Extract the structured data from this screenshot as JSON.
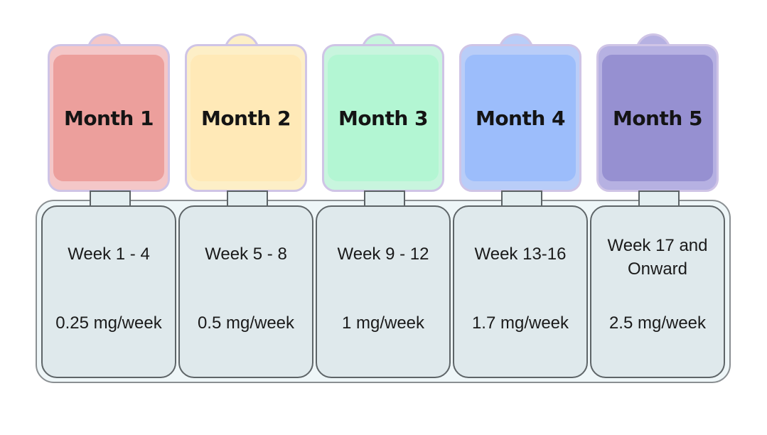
{
  "months": [
    {
      "title": "Month 1",
      "weeks": "Week 1 - 4",
      "dose": "0.25 mg/week",
      "outer": "#f4c7c8",
      "inner": "#ec9f9c",
      "border": "#cfc4e6"
    },
    {
      "title": "Month 2",
      "weeks": "Week 5 - 8",
      "dose": "0.5 mg/week",
      "outer": "#fdefc7",
      "inner": "#ffe9b7",
      "border": "#cfc4e6"
    },
    {
      "title": "Month 3",
      "weeks": "Week 9 - 12",
      "dose": "1 mg/week",
      "outer": "#c8f5de",
      "inner": "#b3f6d3",
      "border": "#cfc4e6"
    },
    {
      "title": "Month 4",
      "weeks": "Week 13-16",
      "dose": "1.7 mg/week",
      "outer": "#b9cdf8",
      "inner": "#9cbdfb",
      "border": "#cfc4e6"
    },
    {
      "title": "Month 5",
      "weeks": "Week 17 and Onward",
      "dose": "2.5 mg/week",
      "outer": "#b6b1e2",
      "inner": "#9690d1",
      "border": "#cfc4e6"
    }
  ]
}
